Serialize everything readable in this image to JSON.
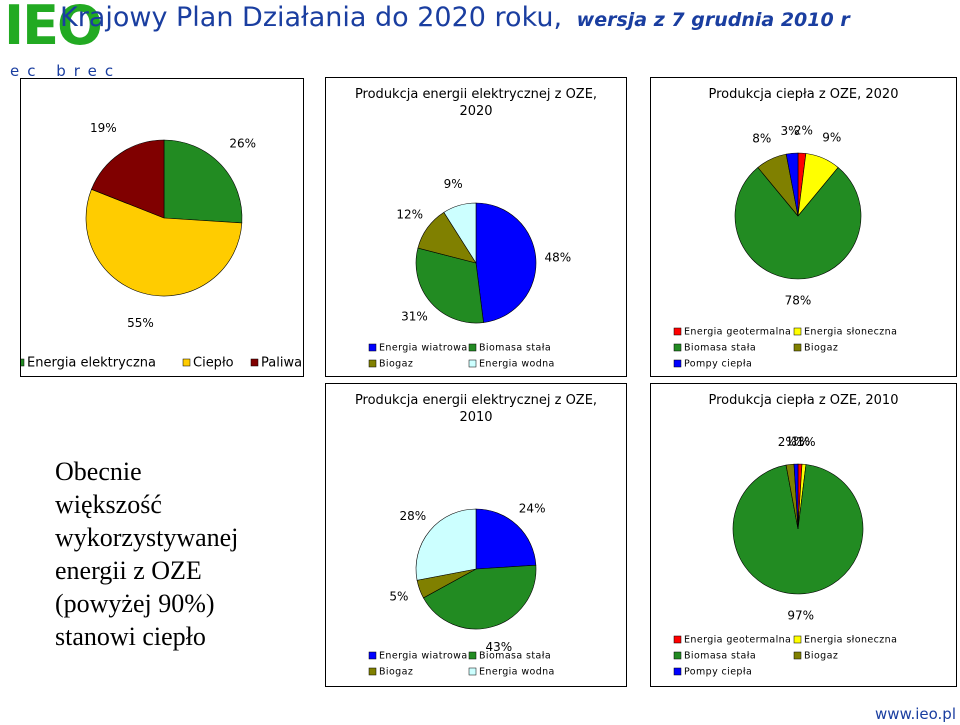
{
  "header": {
    "logo": "IEO",
    "logo_sub": "ec brec",
    "title": "Krajowy Plan Działania do 2020 roku,",
    "subtitle": "wersja z 7 grudnia 2010 r"
  },
  "note": [
    "Obecnie",
    "większość",
    "wykorzystywanej",
    "energii z OZE",
    "(powyżej 90%)",
    "stanowi ciepło"
  ],
  "footer": "www.ieo.pl",
  "chart_data": [
    {
      "type": "pie",
      "categories": [
        "Energia elektryczna",
        "Ciepło",
        "Paliwa"
      ],
      "values": [
        26,
        55,
        19
      ],
      "value_labels": [
        "26%",
        "55%",
        "19%"
      ],
      "colors": [
        "#228b22",
        "#ffcc00",
        "#800000"
      ]
    },
    {
      "type": "pie",
      "title": "Produkcja energii elektrycznej z OZE, 2020",
      "categories": [
        "Energia wiatrowa",
        "Biomasa stała",
        "Biogaz",
        "Energia wodna"
      ],
      "values": [
        48,
        31,
        12,
        9
      ],
      "value_labels": [
        "48%",
        "31%",
        "12%",
        "9%"
      ],
      "colors": [
        "#0000ff",
        "#228b22",
        "#808000",
        "#ccffff"
      ]
    },
    {
      "type": "pie",
      "title": "Produkcja ciepła z OZE, 2020",
      "categories": [
        "Energia geotermalna",
        "Energia słoneczna",
        "Biomasa stała",
        "Biogaz",
        "Pompy ciepła"
      ],
      "values": [
        2,
        9,
        78,
        8,
        3
      ],
      "value_labels": [
        "2%",
        "9%",
        "78%",
        "8%",
        "3%"
      ],
      "colors": [
        "#ff0000",
        "#ffff00",
        "#228b22",
        "#808000",
        "#0000ff"
      ]
    },
    {
      "type": "pie",
      "title": "Produkcja energii elektrycznej z OZE, 2010",
      "categories": [
        "Energia wiatrowa",
        "Biomasa stała",
        "Biogaz",
        "Energia wodna"
      ],
      "values": [
        24,
        43,
        5,
        28
      ],
      "value_labels": [
        "24%",
        "43%",
        "5%",
        "28%"
      ],
      "colors": [
        "#0000ff",
        "#228b22",
        "#808000",
        "#ccffff"
      ]
    },
    {
      "type": "pie",
      "title": "Produkcja ciepła z OZE, 2010",
      "categories": [
        "Energia geotermalna",
        "Energia słoneczna",
        "Biomasa stała",
        "Biogaz",
        "Pompy ciepła"
      ],
      "values": [
        1,
        1,
        97,
        2,
        1
      ],
      "value_labels": [
        "1%",
        "1%",
        "97%",
        "2%",
        "1%"
      ],
      "colors": [
        "#ff0000",
        "#ffff00",
        "#228b22",
        "#808000",
        "#0000ff"
      ]
    }
  ]
}
